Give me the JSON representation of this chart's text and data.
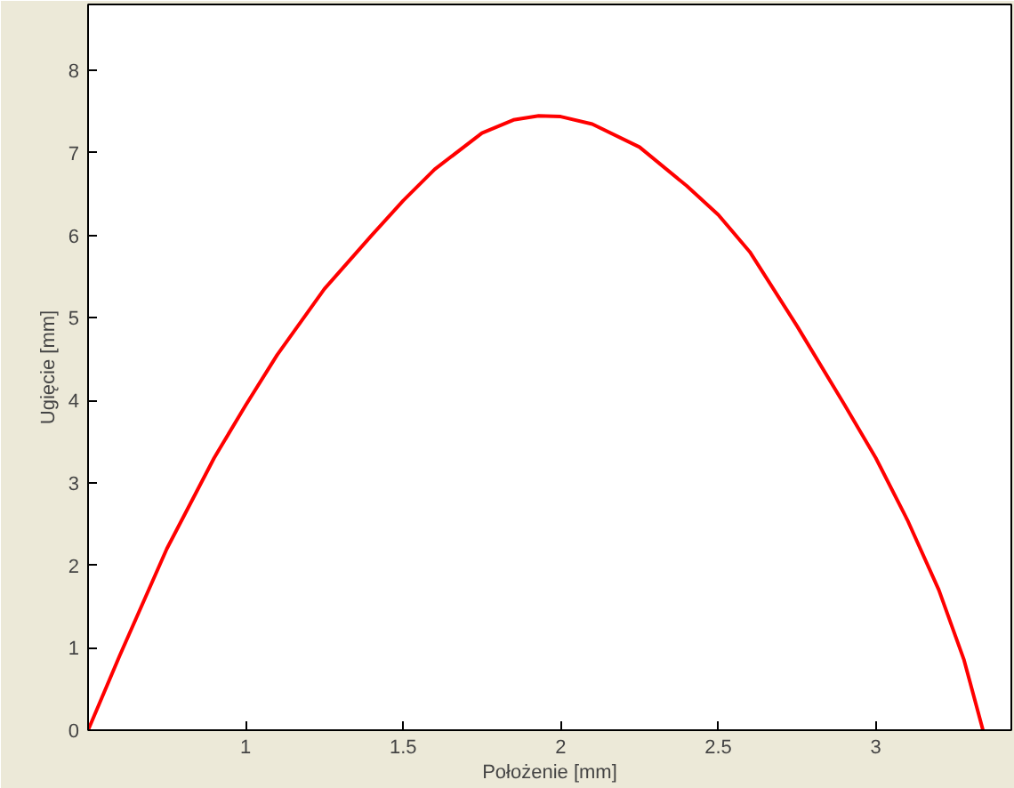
{
  "chart_data": {
    "type": "line",
    "xlabel": "Położenie [mm]",
    "ylabel": "Ugięcie [mm]",
    "xlim": [
      0.5,
      3.43
    ],
    "ylim": [
      0,
      8.8
    ],
    "xticks": [
      1,
      1.5,
      2,
      2.5,
      3
    ],
    "yticks": [
      0,
      1,
      2,
      3,
      4,
      5,
      6,
      7,
      8
    ],
    "grid": false,
    "marker": "none",
    "line_style": "solid",
    "series": [
      {
        "color": "#ff0000",
        "x": [
          0.5,
          0.6,
          0.75,
          0.9,
          1.0,
          1.1,
          1.25,
          1.4,
          1.5,
          1.6,
          1.75,
          1.85,
          1.93,
          2.0,
          2.1,
          2.25,
          2.4,
          2.5,
          2.6,
          2.75,
          2.9,
          3.0,
          3.1,
          3.2,
          3.28,
          3.34
        ],
        "values": [
          0,
          0.9,
          2.2,
          3.3,
          3.94,
          4.55,
          5.35,
          6.0,
          6.42,
          6.8,
          7.24,
          7.4,
          7.45,
          7.44,
          7.35,
          7.07,
          6.6,
          6.25,
          5.8,
          4.9,
          3.95,
          3.3,
          2.55,
          1.7,
          0.85,
          0
        ]
      }
    ]
  }
}
